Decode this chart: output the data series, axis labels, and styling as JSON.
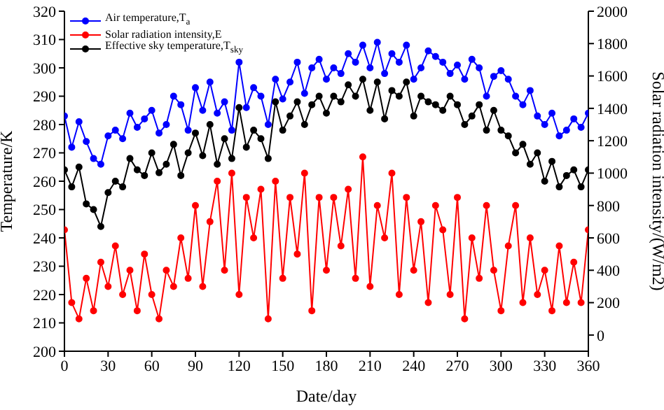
{
  "chart_data": {
    "type": "line",
    "xlabel": "Date/day",
    "ylabel": "Temperature/K",
    "y2label": "Solar radiation intensity/(W/m2)",
    "x": [
      0,
      5,
      10,
      15,
      20,
      25,
      30,
      35,
      40,
      45,
      50,
      55,
      60,
      65,
      70,
      75,
      80,
      85,
      90,
      95,
      100,
      105,
      110,
      115,
      120,
      125,
      130,
      135,
      140,
      145,
      150,
      155,
      160,
      165,
      170,
      175,
      180,
      185,
      190,
      195,
      200,
      205,
      210,
      215,
      220,
      225,
      230,
      235,
      240,
      245,
      250,
      255,
      260,
      265,
      270,
      275,
      280,
      285,
      290,
      295,
      300,
      305,
      310,
      315,
      320,
      325,
      330,
      335,
      340,
      345,
      350,
      355,
      360
    ],
    "series": [
      {
        "name": "Air temperature,T$_{a}$",
        "color": "#0000ff",
        "values": [
          283,
          272,
          281,
          274,
          268,
          266,
          276,
          278,
          275,
          284,
          279,
          282,
          285,
          277,
          280,
          290,
          287,
          278,
          293,
          285,
          295,
          284,
          288,
          278,
          302,
          286,
          293,
          290,
          280,
          296,
          289,
          295,
          302,
          291,
          300,
          303,
          296,
          300,
          298,
          305,
          302,
          308,
          300,
          309,
          298,
          305,
          302,
          308,
          296,
          300,
          306,
          304,
          302,
          298,
          301,
          296,
          303,
          300,
          290,
          297,
          299,
          296,
          290,
          287,
          292,
          283,
          280,
          284,
          276,
          278,
          282,
          279,
          284
        ]
      },
      {
        "name": "Solar radiation intensity,E",
        "color": "#ff0000",
        "axis": "y2",
        "values": [
          650,
          200,
          100,
          350,
          150,
          450,
          300,
          550,
          250,
          400,
          150,
          500,
          250,
          100,
          400,
          300,
          600,
          350,
          800,
          300,
          700,
          950,
          400,
          1000,
          250,
          850,
          600,
          900,
          100,
          950,
          350,
          850,
          500,
          1000,
          150,
          850,
          400,
          850,
          550,
          900,
          350,
          1100,
          300,
          800,
          600,
          1000,
          250,
          850,
          400,
          700,
          200,
          800,
          650,
          250,
          850,
          100,
          600,
          350,
          800,
          400,
          150,
          550,
          800,
          200,
          600,
          250,
          400,
          150,
          550,
          200,
          450,
          200,
          650
        ]
      },
      {
        "name": "Effective sky temperature,T$_{sky}$",
        "color": "#000000",
        "values": [
          264,
          258,
          265,
          252,
          250,
          244,
          256,
          260,
          258,
          268,
          264,
          262,
          270,
          263,
          266,
          273,
          262,
          270,
          277,
          269,
          280,
          266,
          275,
          268,
          286,
          272,
          278,
          275,
          268,
          288,
          278,
          283,
          288,
          280,
          287,
          290,
          284,
          290,
          288,
          294,
          290,
          296,
          285,
          295,
          282,
          292,
          290,
          295,
          283,
          290,
          288,
          287,
          285,
          290,
          287,
          280,
          283,
          287,
          278,
          285,
          278,
          276,
          270,
          273,
          266,
          270,
          260,
          267,
          258,
          262,
          264,
          258,
          264
        ]
      }
    ],
    "xlim": [
      0,
      360
    ],
    "xticks": [
      0,
      30,
      60,
      90,
      120,
      150,
      180,
      210,
      240,
      270,
      300,
      330,
      360
    ],
    "ylim": [
      200,
      320
    ],
    "yticks": [
      200,
      210,
      220,
      230,
      240,
      250,
      260,
      270,
      280,
      290,
      300,
      310,
      320
    ],
    "y2lim": [
      -100,
      2000
    ],
    "y2ticks": [
      0,
      200,
      400,
      600,
      800,
      1000,
      1200,
      1400,
      1600,
      1800,
      2000
    ],
    "marker": "circle",
    "line_style": "solid",
    "legend": "top left",
    "grid": false
  }
}
